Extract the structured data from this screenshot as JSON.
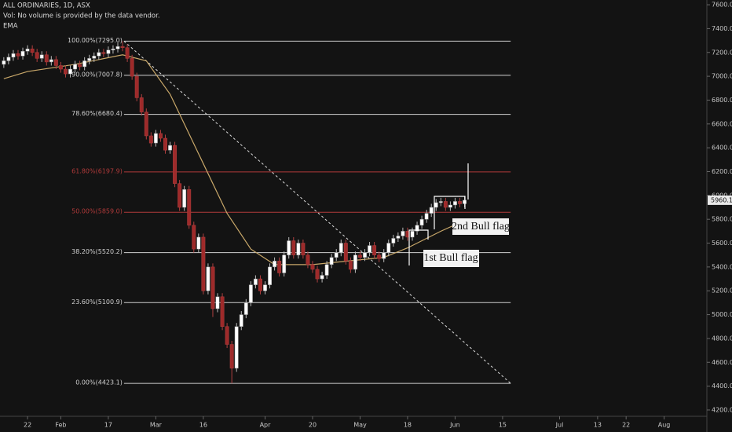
{
  "chart_data": {
    "type": "candlestick",
    "header": [
      "ALL ORDINARIES, 1D, ASX",
      "Vol: No volume is provided by the data vendor.",
      "EMA"
    ],
    "x": [
      -5,
      -4,
      -3,
      -2,
      -1,
      0,
      1,
      2,
      3,
      4,
      5,
      6,
      7,
      8,
      9,
      10,
      11,
      12,
      13,
      14,
      15,
      16,
      17,
      18,
      19,
      20,
      21,
      22,
      23,
      24,
      25,
      26,
      27,
      28,
      29,
      30,
      31,
      32,
      33,
      34,
      35,
      36,
      37,
      38,
      39,
      40,
      41,
      42,
      43,
      44,
      45,
      46,
      47,
      48,
      49,
      50,
      51,
      52,
      53,
      54,
      55,
      56,
      57,
      58,
      59,
      60,
      61,
      62,
      63,
      64,
      65,
      66,
      67,
      68,
      69,
      70,
      71,
      72,
      73,
      74,
      75,
      76,
      77,
      78,
      79,
      80,
      81,
      82,
      83,
      84,
      85,
      86,
      87,
      88,
      89,
      90,
      91,
      92
    ],
    "open": [
      7100,
      7130,
      7160,
      7190,
      7170,
      7210,
      7230,
      7200,
      7150,
      7180,
      7120,
      7140,
      7090,
      7060,
      7020,
      7060,
      7100,
      7080,
      7130,
      7150,
      7170,
      7200,
      7190,
      7220,
      7230,
      7250,
      7240,
      7150,
      7000,
      6820,
      6700,
      6500,
      6440,
      6520,
      6480,
      6380,
      6420,
      6100,
      5900,
      6050,
      5750,
      5550,
      5650,
      5200,
      5400,
      5050,
      5150,
      4900,
      4750,
      4550,
      4900,
      5000,
      5100,
      5250,
      5300,
      5200,
      5250,
      5400,
      5450,
      5350,
      5500,
      5620,
      5500,
      5600,
      5500,
      5420,
      5380,
      5300,
      5330,
      5420,
      5480,
      5520,
      5600,
      5450,
      5380,
      5500,
      5480,
      5520,
      5580,
      5500,
      5470,
      5520,
      5600,
      5640,
      5660,
      5700,
      5650,
      5700,
      5750,
      5800,
      5850,
      5900,
      5940,
      5950,
      5900,
      5920,
      5950,
      5930
    ],
    "high": [
      7160,
      7190,
      7220,
      7220,
      7240,
      7260,
      7260,
      7230,
      7210,
      7210,
      7170,
      7170,
      7120,
      7090,
      7090,
      7130,
      7130,
      7160,
      7180,
      7200,
      7230,
      7230,
      7250,
      7260,
      7280,
      7295,
      7270,
      7180,
      7030,
      6850,
      6730,
      6530,
      6550,
      6550,
      6510,
      6450,
      6450,
      6130,
      6080,
      6080,
      5780,
      5680,
      5680,
      5430,
      5430,
      5180,
      5180,
      4930,
      4780,
      4930,
      5030,
      5130,
      5280,
      5330,
      5330,
      5280,
      5430,
      5480,
      5480,
      5530,
      5650,
      5650,
      5630,
      5630,
      5530,
      5450,
      5410,
      5360,
      5450,
      5510,
      5550,
      5630,
      5630,
      5480,
      5530,
      5530,
      5550,
      5610,
      5610,
      5530,
      5550,
      5630,
      5670,
      5690,
      5730,
      5730,
      5730,
      5780,
      5830,
      5880,
      5930,
      5970,
      5980,
      5980,
      5950,
      5980,
      5980,
      5990
    ],
    "low": [
      7070,
      7100,
      7130,
      7140,
      7140,
      7180,
      7170,
      7120,
      7120,
      7090,
      7090,
      7060,
      7030,
      6990,
      6990,
      7030,
      7050,
      7050,
      7100,
      7120,
      7140,
      7160,
      7160,
      7190,
      7200,
      7210,
      7120,
      6970,
      6790,
      6670,
      6470,
      6410,
      6410,
      6450,
      6350,
      6350,
      6070,
      5870,
      5870,
      5720,
      5520,
      5520,
      5170,
      5170,
      4980,
      5020,
      4870,
      4720,
      4423,
      4520,
      4870,
      4970,
      5070,
      5220,
      5170,
      5170,
      5220,
      5370,
      5320,
      5320,
      5470,
      5470,
      5470,
      5470,
      5390,
      5350,
      5270,
      5270,
      5300,
      5390,
      5450,
      5490,
      5420,
      5350,
      5350,
      5450,
      5450,
      5490,
      5470,
      5440,
      5440,
      5490,
      5570,
      5610,
      5630,
      5620,
      5620,
      5670,
      5720,
      5770,
      5820,
      5870,
      5910,
      5870,
      5870,
      5890,
      5900,
      5900
    ],
    "close": [
      7130,
      7160,
      7190,
      7170,
      7210,
      7230,
      7200,
      7150,
      7180,
      7120,
      7140,
      7090,
      7060,
      7020,
      7060,
      7100,
      7080,
      7130,
      7150,
      7170,
      7200,
      7190,
      7220,
      7230,
      7250,
      7240,
      7150,
      7000,
      6820,
      6700,
      6500,
      6440,
      6520,
      6480,
      6380,
      6420,
      6100,
      5900,
      6050,
      5750,
      5550,
      5650,
      5200,
      5400,
      5050,
      5150,
      4900,
      4750,
      4550,
      4900,
      5000,
      5100,
      5250,
      5300,
      5200,
      5250,
      5400,
      5450,
      5350,
      5500,
      5620,
      5500,
      5600,
      5500,
      5420,
      5380,
      5300,
      5330,
      5420,
      5480,
      5520,
      5600,
      5450,
      5380,
      5500,
      5480,
      5520,
      5580,
      5500,
      5470,
      5520,
      5600,
      5640,
      5660,
      5700,
      5650,
      5700,
      5750,
      5800,
      5850,
      5900,
      5940,
      5950,
      5900,
      5920,
      5950,
      5930,
      5960.1
    ],
    "up_color": "#ffffff",
    "down_color": "#9e2a2a",
    "ema": {
      "name": "EMA",
      "color": "#c9a86a",
      "x": [
        -5,
        0,
        10,
        20,
        25,
        30,
        36,
        42,
        47,
        52,
        60,
        70,
        75,
        80,
        87,
        92
      ],
      "values": [
        6980,
        7040,
        7100,
        7180,
        7130,
        6850,
        6350,
        5850,
        5550,
        5420,
        5420,
        5460,
        5480,
        5560,
        5700,
        5790
      ]
    },
    "trendline": {
      "x": [
        20.3,
        101.7
      ],
      "values": [
        7295,
        4423.1
      ]
    },
    "fib_levels": [
      {
        "label": "100.00%(7295.0)",
        "value": 7295,
        "color": "#d0d0d0"
      },
      {
        "label": "90.00%(7007.8)",
        "value": 7007.8,
        "color": "#d0d0d0"
      },
      {
        "label": "78.60%(6680.4)",
        "value": 6680.4,
        "color": "#d0d0d0"
      },
      {
        "label": "61.80%(6197.9)",
        "value": 6197.9,
        "color": "#b03a3a"
      },
      {
        "label": "50.00%(5859.0)",
        "value": 5859,
        "color": "#b03a3a"
      },
      {
        "label": "38.20%(5520.2)",
        "value": 5520.2,
        "color": "#d0d0d0"
      },
      {
        "label": "23.60%(5100.9)",
        "value": 5100.9,
        "color": "#d0d0d0"
      },
      {
        "label": "0.00%(4423.1)",
        "value": 4423.1,
        "color": "#d0d0d0"
      }
    ],
    "annotations": [
      "2nd Bull flag",
      "1st Bull flag"
    ],
    "last_price": 5960.1,
    "xlim": [
      -5.8,
      143
    ],
    "xticks": [
      {
        "value": 0,
        "label": "22"
      },
      {
        "value": 7,
        "label": "Feb"
      },
      {
        "value": 17,
        "label": "17"
      },
      {
        "value": 27,
        "label": "Mar"
      },
      {
        "value": 37,
        "label": "16"
      },
      {
        "value": 50,
        "label": "Apr"
      },
      {
        "value": 60,
        "label": "20"
      },
      {
        "value": 70,
        "label": "May"
      },
      {
        "value": 80,
        "label": "18"
      },
      {
        "value": 90,
        "label": "Jun"
      },
      {
        "value": 100,
        "label": "15"
      },
      {
        "value": 112,
        "label": "Jul"
      },
      {
        "value": 120,
        "label": "13"
      },
      {
        "value": 126,
        "label": "22"
      },
      {
        "value": 134,
        "label": "Aug"
      }
    ],
    "ylim": [
      4147,
      7640
    ],
    "yticks": [
      {
        "value": 4200,
        "label": "4200.0"
      },
      {
        "value": 4400,
        "label": "4400.0"
      },
      {
        "value": 4600,
        "label": "4600.0"
      },
      {
        "value": 4800,
        "label": "4800.0"
      },
      {
        "value": 5000,
        "label": "5000.0"
      },
      {
        "value": 5200,
        "label": "5200.0"
      },
      {
        "value": 5400,
        "label": "5400.0"
      },
      {
        "value": 5600,
        "label": "5600.0"
      },
      {
        "value": 5800,
        "label": "5800.0"
      },
      {
        "value": 6000,
        "label": "6000.0"
      },
      {
        "value": 6200,
        "label": "6200.0"
      },
      {
        "value": 6400,
        "label": "6400.0"
      },
      {
        "value": 6600,
        "label": "6600.0"
      },
      {
        "value": 6800,
        "label": "6800.0"
      },
      {
        "value": 7000,
        "label": "7000.0"
      },
      {
        "value": 7200,
        "label": "7200.0"
      },
      {
        "value": 7400,
        "label": "7400.0"
      },
      {
        "value": 7600,
        "label": "7600.0"
      }
    ]
  }
}
